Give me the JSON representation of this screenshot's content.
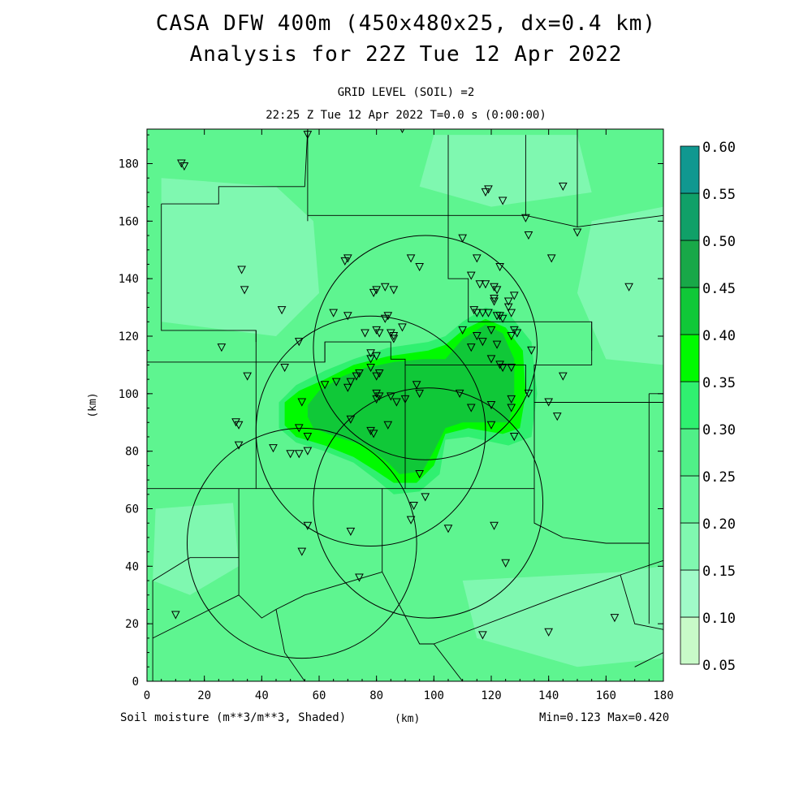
{
  "header": {
    "title_line1": "CASA DFW 400m (450x480x25, dx=0.4 km)",
    "title_line2": "Analysis for 22Z Tue 12 Apr 2022",
    "subtitle_level": "GRID LEVEL (SOIL) =2",
    "subtitle_time": "22:25 Z Tue 12 Apr 2022    T=0.0 s (0:00:00)"
  },
  "footer": {
    "variable_label": "Soil moisture (m**3/m**3, Shaded)",
    "x_unit": "(km)",
    "minmax": "Min=0.123 Max=0.420"
  },
  "chart_data": {
    "type": "heatmap",
    "title": "Analysis for 22Z Tue 12 Apr 2022",
    "xlabel": "(km)",
    "ylabel": "(km)",
    "xlim": [
      0,
      180
    ],
    "ylim": [
      0,
      192
    ],
    "xticks": [
      "0",
      "20",
      "40",
      "60",
      "80",
      "100",
      "120",
      "140",
      "160",
      "180"
    ],
    "yticks": [
      "0",
      "20",
      "40",
      "60",
      "80",
      "100",
      "120",
      "140",
      "160",
      "180"
    ],
    "background_color": "#5ef590",
    "colorbar": {
      "levels": [
        "0.05",
        "0.10",
        "0.15",
        "0.20",
        "0.25",
        "0.30",
        "0.35",
        "0.40",
        "0.45",
        "0.50",
        "0.55",
        "0.60"
      ],
      "colors": [
        "#c8fac8",
        "#a0fac8",
        "#80f8b0",
        "#66f59c",
        "#50f088",
        "#30f070",
        "#00fa00",
        "#10c838",
        "#18a848",
        "#10a068",
        "#109890",
        "#1060f0"
      ]
    },
    "shaded_regions": [
      {
        "level": "0.15",
        "color": "#7ff8b0",
        "points": [
          [
            5,
            175
          ],
          [
            45,
            172
          ],
          [
            58,
            160
          ],
          [
            60,
            135
          ],
          [
            45,
            120
          ],
          [
            5,
            125
          ]
        ]
      },
      {
        "level": "0.15",
        "color": "#7ff8b0",
        "points": [
          [
            100,
            190
          ],
          [
            150,
            190
          ],
          [
            155,
            170
          ],
          [
            120,
            165
          ],
          [
            95,
            172
          ]
        ]
      },
      {
        "level": "0.15",
        "color": "#7ff8b0",
        "points": [
          [
            155,
            160
          ],
          [
            180,
            165
          ],
          [
            180,
            110
          ],
          [
            160,
            112
          ],
          [
            150,
            135
          ]
        ]
      },
      {
        "level": "0.15",
        "color": "#7ff8b0",
        "points": [
          [
            110,
            35
          ],
          [
            165,
            38
          ],
          [
            180,
            40
          ],
          [
            180,
            8
          ],
          [
            150,
            5
          ],
          [
            115,
            15
          ]
        ]
      },
      {
        "level": "0.15",
        "color": "#7ff8b0",
        "points": [
          [
            3,
            60
          ],
          [
            30,
            62
          ],
          [
            32,
            40
          ],
          [
            15,
            30
          ],
          [
            2,
            35
          ]
        ]
      },
      {
        "level": "0.30",
        "color": "#30f070",
        "points": [
          [
            46,
            97
          ],
          [
            52,
            103
          ],
          [
            62,
            108
          ],
          [
            72,
            112
          ],
          [
            84,
            116
          ],
          [
            98,
            118
          ],
          [
            104,
            120
          ],
          [
            110,
            125
          ],
          [
            118,
            130
          ],
          [
            126,
            128
          ],
          [
            134,
            118
          ],
          [
            136,
            100
          ],
          [
            134,
            85
          ],
          [
            126,
            82
          ],
          [
            112,
            85
          ],
          [
            104,
            84
          ],
          [
            102,
            72
          ],
          [
            95,
            66
          ],
          [
            86,
            65
          ],
          [
            80,
            70
          ],
          [
            72,
            76
          ],
          [
            62,
            80
          ],
          [
            52,
            83
          ],
          [
            46,
            88
          ]
        ]
      },
      {
        "level": "0.35",
        "color": "#00fa00",
        "points": [
          [
            48,
            97
          ],
          [
            53,
            101
          ],
          [
            62,
            105
          ],
          [
            72,
            110
          ],
          [
            84,
            113
          ],
          [
            98,
            115
          ],
          [
            104,
            117
          ],
          [
            110,
            122
          ],
          [
            118,
            126
          ],
          [
            125,
            123
          ],
          [
            131,
            115
          ],
          [
            132,
            100
          ],
          [
            130,
            88
          ],
          [
            124,
            86
          ],
          [
            112,
            88
          ],
          [
            104,
            86
          ],
          [
            100,
            75
          ],
          [
            94,
            69
          ],
          [
            86,
            69
          ],
          [
            80,
            73
          ],
          [
            72,
            78
          ],
          [
            62,
            82
          ],
          [
            52,
            85
          ],
          [
            48,
            89
          ]
        ]
      },
      {
        "level": "0.40",
        "color": "#10c838",
        "points": [
          [
            56,
            96
          ],
          [
            60,
            101
          ],
          [
            68,
            106
          ],
          [
            76,
            109
          ],
          [
            86,
            111
          ],
          [
            96,
            112
          ],
          [
            104,
            112
          ],
          [
            110,
            119
          ],
          [
            118,
            124
          ],
          [
            124,
            121
          ],
          [
            128,
            112
          ],
          [
            128,
            98
          ],
          [
            126,
            90
          ],
          [
            118,
            90
          ],
          [
            110,
            90
          ],
          [
            104,
            88
          ],
          [
            100,
            80
          ],
          [
            96,
            73
          ],
          [
            88,
            72
          ],
          [
            84,
            76
          ],
          [
            76,
            82
          ],
          [
            66,
            85
          ],
          [
            58,
            88
          ],
          [
            56,
            92
          ]
        ]
      }
    ],
    "radar_circles": [
      {
        "cx": 97,
        "cy": 116,
        "r": 39
      },
      {
        "cx": 78,
        "cy": 87,
        "r": 40
      },
      {
        "cx": 98,
        "cy": 62,
        "r": 40
      },
      {
        "cx": 54,
        "cy": 48,
        "r": 40
      }
    ],
    "boundaries": [
      [
        [
          5,
          166
        ],
        [
          5,
          122
        ],
        [
          38,
          122
        ],
        [
          38,
          118
        ]
      ],
      [
        [
          5,
          166
        ],
        [
          25,
          166
        ],
        [
          25,
          172
        ],
        [
          55,
          172
        ],
        [
          56,
          192
        ]
      ],
      [
        [
          56,
          160
        ],
        [
          56,
          192
        ]
      ],
      [
        [
          56,
          162
        ],
        [
          105,
          162
        ],
        [
          105,
          190
        ]
      ],
      [
        [
          105,
          162
        ],
        [
          132,
          162
        ],
        [
          132,
          190
        ]
      ],
      [
        [
          132,
          162
        ],
        [
          150,
          158
        ],
        [
          150,
          192
        ]
      ],
      [
        [
          150,
          158
        ],
        [
          180,
          162
        ]
      ],
      [
        [
          105,
          162
        ],
        [
          105,
          140
        ],
        [
          112,
          140
        ],
        [
          112,
          125
        ],
        [
          155,
          125
        ],
        [
          155,
          115
        ]
      ],
      [
        [
          38,
          122
        ],
        [
          38,
          111
        ],
        [
          62,
          111
        ],
        [
          62,
          118
        ],
        [
          85,
          118
        ],
        [
          85,
          112
        ],
        [
          90,
          112
        ],
        [
          90,
          110
        ],
        [
          105,
          110
        ]
      ],
      [
        [
          38,
          111
        ],
        [
          0,
          111
        ]
      ],
      [
        [
          38,
          111
        ],
        [
          38,
          67
        ],
        [
          0,
          67
        ]
      ],
      [
        [
          38,
          67
        ],
        [
          82,
          67
        ],
        [
          82,
          58
        ],
        [
          82,
          38
        ]
      ],
      [
        [
          62,
          111
        ],
        [
          62,
          118
        ]
      ],
      [
        [
          105,
          110
        ],
        [
          132,
          110
        ],
        [
          132,
          100
        ]
      ],
      [
        [
          90,
          110
        ],
        [
          90,
          67
        ]
      ],
      [
        [
          82,
          67
        ],
        [
          135,
          67
        ],
        [
          135,
          97
        ],
        [
          155,
          97
        ],
        [
          180,
          97
        ]
      ],
      [
        [
          135,
          97
        ],
        [
          135,
          110
        ],
        [
          155,
          110
        ],
        [
          155,
          125
        ]
      ],
      [
        [
          175,
          20
        ],
        [
          175,
          100
        ]
      ],
      [
        [
          180,
          100
        ],
        [
          175,
          100
        ]
      ],
      [
        [
          135,
          67
        ],
        [
          135,
          55
        ],
        [
          145,
          50
        ],
        [
          160,
          48
        ],
        [
          175,
          48
        ]
      ],
      [
        [
          32,
          67
        ],
        [
          32,
          43
        ],
        [
          15,
          43
        ],
        [
          2,
          35
        ]
      ],
      [
        [
          32,
          43
        ],
        [
          32,
          30
        ],
        [
          2,
          15
        ]
      ],
      [
        [
          82,
          38
        ],
        [
          55,
          30
        ],
        [
          45,
          25
        ],
        [
          48,
          10
        ],
        [
          55,
          0
        ]
      ],
      [
        [
          82,
          38
        ],
        [
          95,
          13
        ],
        [
          100,
          13
        ],
        [
          110,
          0
        ]
      ],
      [
        [
          100,
          13
        ],
        [
          145,
          30
        ],
        [
          165,
          37
        ],
        [
          180,
          42
        ]
      ],
      [
        [
          2,
          35
        ],
        [
          2,
          0
        ]
      ],
      [
        [
          165,
          37
        ],
        [
          170,
          20
        ],
        [
          180,
          18
        ]
      ],
      [
        [
          170,
          5
        ],
        [
          180,
          10
        ]
      ],
      [
        [
          32,
          30
        ],
        [
          40,
          22
        ],
        [
          45,
          25
        ]
      ]
    ],
    "stations": [
      [
        12,
        180
      ],
      [
        13,
        179
      ],
      [
        56,
        190
      ],
      [
        89,
        192
      ],
      [
        118,
        170
      ],
      [
        119,
        171
      ],
      [
        124,
        167
      ],
      [
        145,
        172
      ],
      [
        132,
        161
      ],
      [
        133,
        155
      ],
      [
        150,
        156
      ],
      [
        141,
        147
      ],
      [
        168,
        137
      ],
      [
        110,
        154
      ],
      [
        113,
        141
      ],
      [
        115,
        147
      ],
      [
        123,
        144
      ],
      [
        116,
        138
      ],
      [
        118,
        138
      ],
      [
        121,
        137
      ],
      [
        121,
        133
      ],
      [
        122,
        136
      ],
      [
        121,
        132
      ],
      [
        119,
        128
      ],
      [
        126,
        132
      ],
      [
        128,
        134
      ],
      [
        114,
        129
      ],
      [
        115,
        128
      ],
      [
        117,
        128
      ],
      [
        122,
        127
      ],
      [
        126,
        130
      ],
      [
        127,
        128
      ],
      [
        123,
        127
      ],
      [
        124,
        126
      ],
      [
        110,
        122
      ],
      [
        115,
        120
      ],
      [
        117,
        118
      ],
      [
        120,
        122
      ],
      [
        128,
        122
      ],
      [
        129,
        121
      ],
      [
        127,
        120
      ],
      [
        122,
        117
      ],
      [
        134,
        115
      ],
      [
        113,
        116
      ],
      [
        120,
        112
      ],
      [
        123,
        110
      ],
      [
        124,
        109
      ],
      [
        127,
        109
      ],
      [
        145,
        106
      ],
      [
        140,
        97
      ],
      [
        143,
        92
      ],
      [
        133,
        100
      ],
      [
        127,
        98
      ],
      [
        127,
        95
      ],
      [
        128,
        85
      ],
      [
        120,
        96
      ],
      [
        120,
        89
      ],
      [
        113,
        95
      ],
      [
        109,
        100
      ],
      [
        94,
        103
      ],
      [
        95,
        100
      ],
      [
        90,
        98
      ],
      [
        87,
        97
      ],
      [
        81,
        99
      ],
      [
        80,
        98
      ],
      [
        85,
        99
      ],
      [
        80,
        106
      ],
      [
        81,
        107
      ],
      [
        78,
        109
      ],
      [
        74,
        107
      ],
      [
        71,
        104
      ],
      [
        70,
        102
      ],
      [
        73,
        106
      ],
      [
        66,
        104
      ],
      [
        62,
        103
      ],
      [
        80,
        100
      ],
      [
        65,
        128
      ],
      [
        70,
        127
      ],
      [
        70,
        147
      ],
      [
        69,
        146
      ],
      [
        92,
        147
      ],
      [
        95,
        144
      ],
      [
        86,
        136
      ],
      [
        80,
        136
      ],
      [
        79,
        135
      ],
      [
        83,
        137
      ],
      [
        84,
        127
      ],
      [
        83,
        126
      ],
      [
        89,
        123
      ],
      [
        85,
        121
      ],
      [
        86,
        120
      ],
      [
        86,
        119
      ],
      [
        80,
        122
      ],
      [
        81,
        121
      ],
      [
        76,
        121
      ],
      [
        78,
        114
      ],
      [
        80,
        113
      ],
      [
        78,
        112
      ],
      [
        33,
        143
      ],
      [
        34,
        136
      ],
      [
        47,
        129
      ],
      [
        26,
        116
      ],
      [
        35,
        106
      ],
      [
        48,
        109
      ],
      [
        53,
        118
      ],
      [
        54,
        97
      ],
      [
        44,
        81
      ],
      [
        31,
        90
      ],
      [
        32,
        89
      ],
      [
        32,
        82
      ],
      [
        50,
        79
      ],
      [
        53,
        79
      ],
      [
        53,
        88
      ],
      [
        56,
        85
      ],
      [
        56,
        80
      ],
      [
        71,
        91
      ],
      [
        78,
        87
      ],
      [
        79,
        86
      ],
      [
        84,
        89
      ],
      [
        95,
        72
      ],
      [
        97,
        64
      ],
      [
        93,
        61
      ],
      [
        92,
        56
      ],
      [
        105,
        53
      ],
      [
        121,
        54
      ],
      [
        56,
        54
      ],
      [
        54,
        45
      ],
      [
        71,
        52
      ],
      [
        74,
        36
      ],
      [
        125,
        41
      ],
      [
        10,
        23
      ],
      [
        117,
        16
      ],
      [
        140,
        17
      ],
      [
        163,
        22
      ]
    ]
  }
}
